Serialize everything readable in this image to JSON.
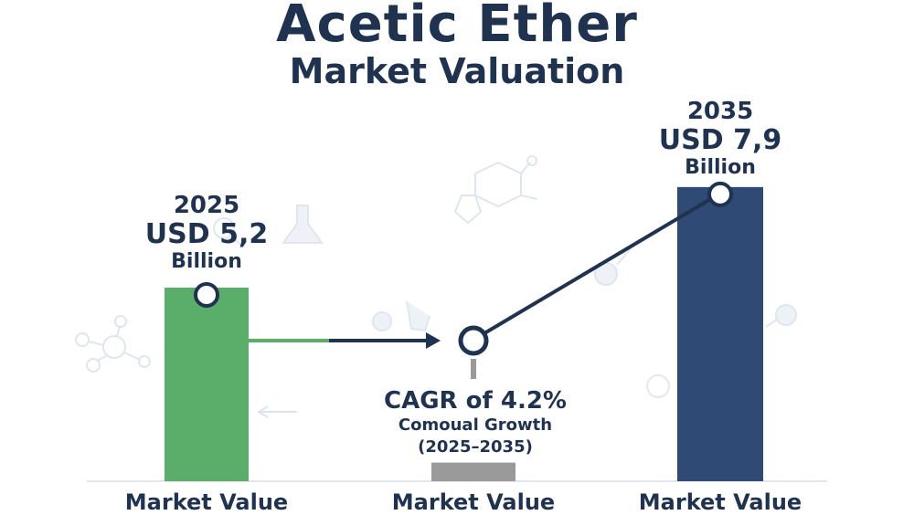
{
  "title": {
    "line1": "Acetic Ether",
    "line2": "Market Valuation"
  },
  "chart_data": {
    "type": "bar",
    "categories": [
      "Market Value",
      "Market Value",
      "Market Value"
    ],
    "values": [
      5.2,
      null,
      7.9
    ],
    "ylim": [
      0,
      9
    ],
    "bars": [
      {
        "year": "2025",
        "amount": "USD 5,2",
        "unit": "Billion",
        "value": 5.2,
        "color": "#5aae6a"
      },
      {
        "year": "",
        "amount": "",
        "unit": "",
        "value": 0.5,
        "color": "#9a9a9a"
      },
      {
        "year": "2035",
        "amount": "USD 7,9",
        "unit": "Billion",
        "value": 7.9,
        "color": "#2e4a75"
      }
    ],
    "annotation": {
      "cagr": "CAGR of 4.2%",
      "label": "Comoual Growth",
      "period": "(2025–2035)"
    }
  },
  "colors": {
    "title": "#1f3350",
    "line": "#1f3350",
    "green": "#5aae6a",
    "navy": "#2e4a75",
    "gray": "#9a9a9a"
  }
}
